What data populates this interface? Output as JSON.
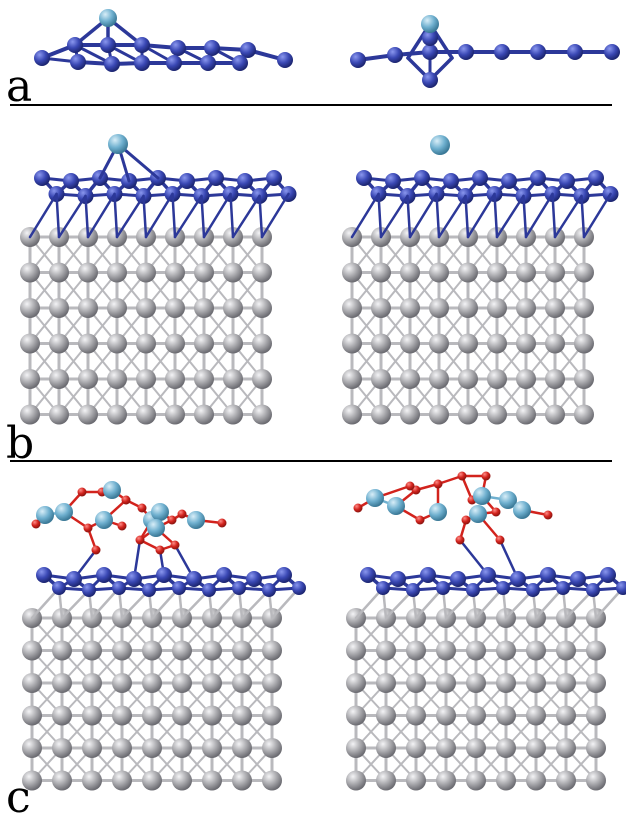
{
  "panels": [
    {
      "label": "a"
    },
    {
      "label": "b"
    },
    {
      "label": "c"
    }
  ],
  "colors": {
    "nitrogen_blue": "#3a48b4",
    "adatom_light_blue": "#6fb0cf",
    "substrate_gray": "#a9a9ad",
    "oxygen_red": "#d2231d",
    "background": "#ffffff"
  }
}
